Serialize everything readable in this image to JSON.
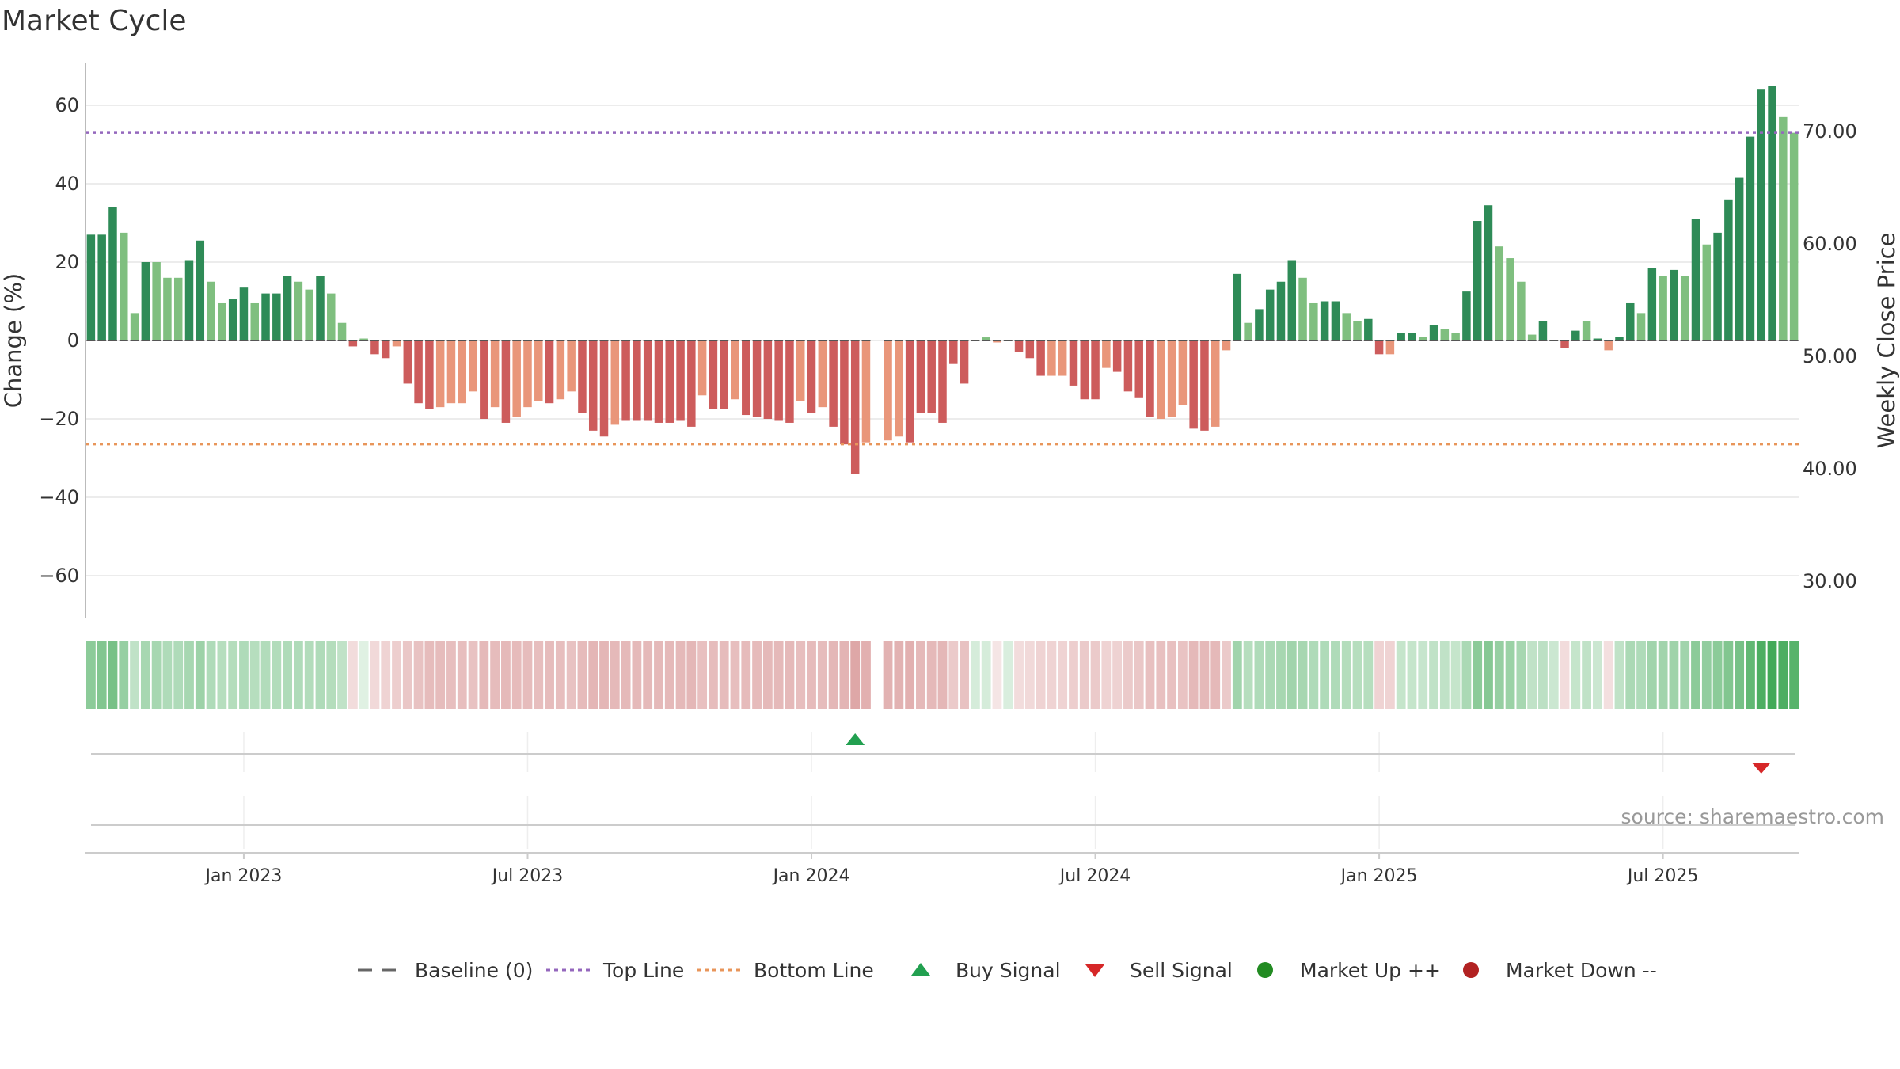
{
  "title": "Market Cycle",
  "source": "source: sharemaestro.com",
  "chart_data": {
    "type": "bar",
    "ylabel": "Change (%)",
    "y2label": "Weekly Close Price",
    "ylim": [
      -72,
      72
    ],
    "y_ticks": [
      60,
      40,
      20,
      0,
      -20,
      -40,
      -60
    ],
    "y_tick_labels": [
      "60",
      "40",
      "20",
      "0",
      "−20",
      "−40",
      "−60"
    ],
    "y2lim": [
      26.0,
      76.0
    ],
    "y2_ticks": [
      70,
      60,
      50,
      40,
      30
    ],
    "y2_tick_labels": [
      "70.00",
      "60.00",
      "50.00",
      "40.00",
      "30.00"
    ],
    "x_ticks": [
      {
        "label": "Jan 2023",
        "week": 14
      },
      {
        "label": "Jul 2023",
        "week": 40
      },
      {
        "label": "Jan 2024",
        "week": 66
      },
      {
        "label": "Jul 2024",
        "week": 92
      },
      {
        "label": "Jan 2025",
        "week": 118
      },
      {
        "label": "Jul 2025",
        "week": 144
      }
    ],
    "grid": true,
    "top_line": 53,
    "bottom_line": -26.5,
    "weeks": 157,
    "values": [
      27,
      27,
      34,
      27.5,
      7,
      20,
      20,
      16,
      16,
      20.5,
      25.5,
      15,
      9.5,
      10.5,
      13.5,
      9.5,
      12,
      12,
      16.5,
      15,
      13,
      16.5,
      12,
      4.5,
      -1.5,
      0.5,
      -3.5,
      -4.5,
      -1.5,
      -11,
      -16,
      -17.5,
      -17,
      -16,
      -16,
      -13,
      -20,
      -17,
      -21,
      -19.5,
      -17,
      -15.5,
      -16,
      -15,
      -13,
      -18.5,
      -23,
      -24.5,
      -21.5,
      -20.5,
      -20.5,
      -20.5,
      -21,
      -21,
      -20.5,
      -22,
      -14,
      -17.5,
      -17.5,
      -15,
      -19,
      -19.5,
      -20,
      -20.5,
      -21,
      -15.5,
      -18.5,
      -17,
      -22,
      -26.5,
      -34,
      -26,
      null,
      -25.5,
      -24.5,
      -26,
      -18.5,
      -18.5,
      -21,
      -6,
      -11,
      0,
      0.8,
      -0.5,
      0,
      -3,
      -4.5,
      -9,
      -9,
      -9,
      -11.5,
      -15,
      -15,
      -7,
      -8,
      -13,
      -14.5,
      -19.5,
      -20,
      -19.5,
      -16.5,
      -22.5,
      -23,
      -22,
      -2.5,
      17,
      4.5,
      8,
      13,
      15,
      20.5,
      16,
      9.5,
      10,
      10,
      7,
      5,
      5.5,
      -3.5,
      -3.5,
      2,
      2,
      1,
      4,
      3,
      2,
      12.5,
      30.5,
      34.5,
      24,
      21,
      15,
      1.5,
      5,
      0,
      -2,
      2.5,
      5,
      0.5,
      -2.5,
      1,
      9.5,
      7,
      18.5,
      16.5,
      18,
      16.5,
      31,
      24.5,
      27.5,
      36,
      41.5,
      52,
      64,
      65,
      57,
      53
    ],
    "trend_dark": [
      1,
      1,
      1,
      0,
      0,
      1,
      0,
      0,
      0,
      1,
      1,
      0,
      0,
      1,
      1,
      0,
      1,
      1,
      1,
      0,
      0,
      1,
      0,
      0,
      1,
      0,
      1,
      1,
      0,
      1,
      1,
      1,
      0,
      0,
      0,
      0,
      1,
      0,
      1,
      0,
      0,
      0,
      1,
      0,
      0,
      1,
      1,
      1,
      0,
      1,
      1,
      1,
      1,
      1,
      1,
      1,
      0,
      1,
      1,
      0,
      1,
      1,
      1,
      1,
      1,
      0,
      1,
      0,
      1,
      1,
      1,
      0,
      0,
      0,
      0,
      1,
      1,
      1,
      1,
      1,
      1,
      1,
      0,
      0,
      1,
      1,
      1,
      1,
      0,
      0,
      1,
      1,
      1,
      0,
      1,
      1,
      1,
      1,
      0,
      0,
      0,
      1,
      1,
      0,
      0,
      1,
      0,
      1,
      1,
      1,
      1,
      0,
      0,
      1,
      1,
      0,
      0,
      1,
      1,
      0,
      1,
      1,
      0,
      1,
      0,
      0,
      1,
      1,
      1,
      0,
      0,
      0,
      0,
      1,
      1,
      1,
      1,
      0,
      1,
      0,
      1,
      1,
      0,
      1,
      0,
      1,
      0,
      1,
      0,
      1,
      1,
      1,
      1,
      1,
      1,
      0,
      0
    ],
    "strip_intensity": [
      0.55,
      0.6,
      0.65,
      0.5,
      0.3,
      0.42,
      0.42,
      0.38,
      0.38,
      0.42,
      0.47,
      0.38,
      0.35,
      0.36,
      0.38,
      0.35,
      0.37,
      0.37,
      0.38,
      0.38,
      0.37,
      0.38,
      0.36,
      0.3,
      0.2,
      0.15,
      0.22,
      0.25,
      0.28,
      0.32,
      0.35,
      0.38,
      0.38,
      0.37,
      0.37,
      0.35,
      0.4,
      0.38,
      0.4,
      0.39,
      0.38,
      0.37,
      0.38,
      0.37,
      0.35,
      0.39,
      0.42,
      0.42,
      0.4,
      0.4,
      0.4,
      0.4,
      0.4,
      0.4,
      0.4,
      0.41,
      0.36,
      0.38,
      0.38,
      0.37,
      0.39,
      0.39,
      0.4,
      0.4,
      0.4,
      0.37,
      0.39,
      0.38,
      0.41,
      0.43,
      0.5,
      0.45,
      0,
      0.44,
      0.44,
      0.45,
      0.4,
      0.4,
      0.41,
      0.3,
      0.35,
      0.2,
      0.2,
      0.15,
      0.18,
      0.2,
      0.22,
      0.25,
      0.25,
      0.25,
      0.28,
      0.3,
      0.3,
      0.25,
      0.26,
      0.3,
      0.32,
      0.36,
      0.36,
      0.36,
      0.34,
      0.4,
      0.4,
      0.4,
      0.3,
      0.45,
      0.35,
      0.38,
      0.4,
      0.42,
      0.45,
      0.42,
      0.38,
      0.38,
      0.38,
      0.36,
      0.35,
      0.35,
      0.25,
      0.25,
      0.28,
      0.28,
      0.27,
      0.3,
      0.3,
      0.28,
      0.4,
      0.55,
      0.58,
      0.5,
      0.48,
      0.42,
      0.3,
      0.32,
      0.25,
      0.2,
      0.28,
      0.3,
      0.25,
      0.18,
      0.3,
      0.4,
      0.38,
      0.45,
      0.45,
      0.46,
      0.45,
      0.55,
      0.52,
      0.55,
      0.6,
      0.65,
      0.75,
      0.85,
      0.9,
      0.85,
      0.8
    ],
    "buy_signals": [
      70
    ],
    "sell_signals": [
      153
    ]
  },
  "legend": [
    {
      "label": "Baseline (0)",
      "icon": "dashed-line",
      "color": "#666666"
    },
    {
      "label": "Top Line",
      "icon": "dotted-line",
      "color": "#9467bd"
    },
    {
      "label": "Bottom Line",
      "icon": "dotted-line",
      "color": "#e8955a"
    },
    {
      "label": "Buy Signal",
      "icon": "triangle-up",
      "color": "#22a050"
    },
    {
      "label": "Sell Signal",
      "icon": "triangle-down",
      "color": "#d62728"
    },
    {
      "label": "Market Up ++",
      "icon": "circle",
      "color": "#228b22"
    },
    {
      "label": "Market Down --",
      "icon": "circle",
      "color": "#b22222"
    }
  ],
  "colors": {
    "up_dark": "#2e8b57",
    "up_light": "#7fbf7f",
    "down_dark": "#cd5c5c",
    "down_light": "#e9967a",
    "grid": "#e6e6e6",
    "top_line": "#9467bd",
    "bottom_line": "#e8955a"
  }
}
